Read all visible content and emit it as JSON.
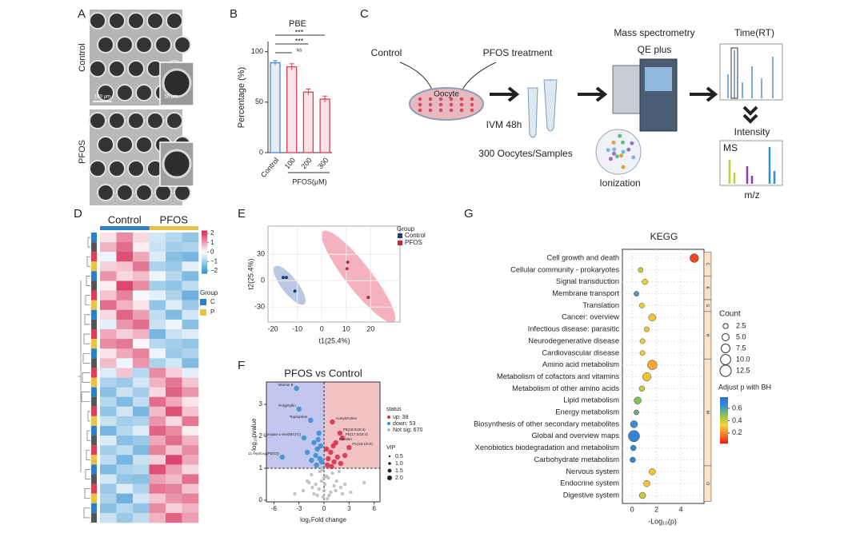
{
  "panels": {
    "letters": [
      "A",
      "B",
      "C",
      "D",
      "E",
      "F",
      "G"
    ]
  },
  "panel_a": {
    "rows": [
      "Control",
      "PFOS"
    ],
    "scale_bars": [
      "100 μm",
      "50 μm"
    ]
  },
  "diagram": {
    "control": "Control",
    "treatment": "PFOS treatment",
    "oocyte": "Oocyte",
    "ivm": "IVM 48h",
    "samples": "300 Oocytes/Samples",
    "ms1": "Mass spectrometry",
    "ms2": "QE plus",
    "ionization": "Ionization",
    "time": "Time(RT)",
    "intensity": "Intensity",
    "ms": "MS",
    "mz": "m/z"
  },
  "chart_data": [
    {
      "type": "bar",
      "title": "PBE",
      "y_label": "Percentage (%)",
      "x_label": "PFOS(μM)",
      "categories": [
        "Control",
        "100",
        "200",
        "300"
      ],
      "values": [
        89,
        85,
        60,
        53
      ],
      "errors": [
        2,
        3,
        3,
        3
      ],
      "colors": [
        "#4d86c8",
        "#d9405a",
        "#d9405a",
        "#d9405a"
      ],
      "ylim": [
        0,
        110
      ],
      "yticks": [
        0,
        50,
        100
      ],
      "annotations": [
        "NS",
        "***",
        "***"
      ]
    },
    {
      "type": "heatmap",
      "column_groups": [
        "Control",
        "PFOS"
      ],
      "group_colors": [
        "#2f7fc1",
        "#e8c34a"
      ],
      "zlim": [
        -2.3,
        2.3
      ],
      "zticks": [
        2,
        1,
        0,
        {
          "value": -1,
          "label": "−1"
        },
        {
          "value": -2,
          "label": "−2"
        }
      ],
      "legend": {
        "title": "Group",
        "items": [
          "C",
          "P"
        ]
      },
      "matrix": [
        [
          0.3,
          1.2,
          0.4,
          -0.5,
          -0.8,
          -1.2
        ],
        [
          0.8,
          1.5,
          0.2,
          -0.6,
          -1,
          -0.9
        ],
        [
          -0.2,
          1.8,
          0.9,
          -0.4,
          -1.3,
          -1.5
        ],
        [
          0.5,
          0.6,
          1.4,
          -0.9,
          -1.1,
          -0.3
        ],
        [
          1.1,
          0.4,
          0.7,
          -0.2,
          -0.8,
          -1.4
        ],
        [
          0.2,
          1.9,
          1.2,
          -1,
          -1.2,
          -0.7
        ],
        [
          0.6,
          1.3,
          -0.1,
          -0.3,
          -0.9,
          -1.6
        ],
        [
          1.5,
          0.8,
          0.3,
          -1.2,
          -0.4,
          -1.1
        ],
        [
          0.4,
          1.6,
          1.0,
          -0.7,
          -1.4,
          -0.5
        ],
        [
          -0.3,
          1.1,
          1.5,
          -0.6,
          -0.2,
          -1.3
        ],
        [
          0.9,
          0.5,
          0.8,
          -1.5,
          -0.6,
          -0.4
        ],
        [
          1.2,
          1.4,
          0.1,
          -0.8,
          -1.0,
          -1.2
        ],
        [
          0.3,
          0.9,
          1.3,
          -0.2,
          -1.1,
          -0.9
        ],
        [
          0.7,
          -0.2,
          1.1,
          -0.9,
          -0.5,
          -1.4
        ],
        [
          -0.4,
          0.6,
          -0.8,
          1.2,
          0.5,
          -0.3
        ],
        [
          -0.9,
          -1.1,
          -0.5,
          0.8,
          1.4,
          0.6
        ],
        [
          -1.3,
          -0.6,
          -1.0,
          0.4,
          1.6,
          1.1
        ],
        [
          -0.8,
          -1.4,
          -0.7,
          1.5,
          0.9,
          0.3
        ],
        [
          -1.2,
          -0.5,
          -1.5,
          0.7,
          1.8,
          0.6
        ],
        [
          -0.6,
          -1.0,
          -0.9,
          1.1,
          0.4,
          1.4
        ],
        [
          -1.5,
          -0.8,
          -0.4,
          1.6,
          1.2,
          0.2
        ],
        [
          -0.4,
          -1.3,
          -1.1,
          0.9,
          1.5,
          0.8
        ],
        [
          -1.0,
          -0.7,
          -1.4,
          1.3,
          0.6,
          1.2
        ],
        [
          -0.7,
          -1.5,
          -0.6,
          0.5,
          1.9,
          0.9
        ],
        [
          -1.4,
          -0.9,
          -0.8,
          1.8,
          1.0,
          0.4
        ],
        [
          -0.5,
          -1.2,
          -1.3,
          1.0,
          0.7,
          1.5
        ],
        [
          -1.1,
          -0.4,
          -0.9,
          1.4,
          1.3,
          0.6
        ],
        [
          -0.9,
          -1.6,
          -0.5,
          0.6,
          1.1,
          1.3
        ],
        [
          -1.3,
          -0.8,
          -1.2,
          1.2,
          0.5,
          0.8
        ],
        [
          -0.6,
          -1.1,
          -0.7,
          0.8,
          1.6,
          1.0
        ]
      ]
    },
    {
      "type": "scatter",
      "x_label": "t1(25.4%)",
      "y_label": "t2(25.4%)",
      "legend_title": "Group",
      "series": [
        {
          "name": "Control",
          "color": "#1f3d7a",
          "x": [
            -15.8,
            -14.5,
            -11
          ],
          "values": [
            3.6,
            3.6,
            -11.8
          ]
        },
        {
          "name": "PFOS",
          "color": "#c8233f",
          "x": [
            10.6,
            10.3,
            19
          ],
          "values": [
            21,
            13.6,
            -19
          ]
        }
      ],
      "xlim": [
        -22,
        32
      ],
      "ylim": [
        -47,
        62
      ],
      "xticks": [
        -20,
        -10,
        0,
        10,
        20
      ],
      "yticks": [
        -30,
        0,
        30
      ]
    },
    {
      "type": "volcano",
      "title": "PFOS vs Control",
      "x_label": "log₂Fold change",
      "y_label": "-log₁₀pvalue",
      "legend_title": "status",
      "hline": 1,
      "vline": 0,
      "series": [
        {
          "name": "up: 38",
          "color": "#d6314e",
          "x": [
            1.0,
            1.9,
            2.2,
            1.4,
            3.0,
            0.5,
            0.8,
            1.2,
            0.4,
            2.5,
            1.6,
            0.3,
            0.9,
            2.0,
            1.1
          ],
          "values": [
            2.45,
            2.1,
            1.95,
            1.8,
            1.65,
            1.3,
            1.5,
            1.2,
            1.1,
            1.4,
            1.35,
            1.6,
            1.05,
            1.15,
            1.7
          ]
        },
        {
          "name": "down: 53",
          "color": "#3b8fd0",
          "x": [
            -3.3,
            -3.0,
            -1.6,
            -2.4,
            -5.0,
            -1.2,
            -0.8,
            -0.5,
            -1.0,
            -0.3,
            -0.6,
            -1.5,
            -0.9,
            -0.4,
            -2.0,
            -0.7
          ],
          "values": [
            3.5,
            2.85,
            2.5,
            1.95,
            1.35,
            1.8,
            1.6,
            1.3,
            1.4,
            1.2,
            2.1,
            1.25,
            1.1,
            1.7,
            1.5,
            1.9
          ]
        },
        {
          "name": "Not sig: 670",
          "color": "#bdbdbd",
          "x": [
            -2,
            -1.5,
            -1,
            -0.5,
            0,
            0.5,
            1,
            1.5,
            2,
            2.5,
            -2.5,
            -1.2,
            -0.3,
            0.3,
            0.8,
            1.8,
            -0.8,
            0.1,
            -0.1,
            1.2,
            -1.8,
            2.2,
            -0.6,
            0.6,
            1.4,
            -1.4,
            0.0,
            -3.5,
            3.2,
            4.8,
            -0.2,
            0.4
          ],
          "values": [
            0.6,
            0.8,
            0.5,
            0.9,
            0.3,
            0.7,
            0.85,
            0.6,
            0.4,
            0.5,
            0.3,
            0.2,
            0.6,
            0.75,
            0.25,
            0.9,
            0.15,
            0.5,
            0.1,
            0.45,
            0.55,
            0.2,
            0.35,
            0.15,
            0.3,
            0.4,
            0.7,
            0.2,
            0.25,
            0.55,
            0.95,
            0.05
          ]
        }
      ],
      "point_labels": {
        "up": [
          "Acetylcholine",
          "PE(18:0/20:4)",
          "PE(17:0/22:4)",
          "Ebselen",
          "PC(18:1/0:0)"
        ],
        "down": [
          "Vitamin B",
          "Polyphyllin",
          "Tryptophan",
          "2-propan-1-ene(MG(T))",
          "11-Hydroxy(PD(O))"
        ]
      },
      "size_legend": {
        "title": "VIP",
        "ticks": [
          0.5,
          {
            "value": 1,
            "label": "1.0"
          },
          1.5,
          {
            "value": 2,
            "label": "2.0"
          }
        ]
      },
      "xlim": [
        -6.9,
        6.7
      ],
      "ylim": [
        -0.05,
        3.7
      ],
      "xticks": [
        -6,
        -3,
        0,
        3,
        6
      ],
      "yticks": [
        0,
        1,
        2,
        3
      ]
    },
    {
      "type": "dot",
      "title": "KEGG",
      "x_label": "-Log₁₀(p)",
      "categories": [
        "Cell growth and death",
        "Cellular community - prokaryotes",
        "Signal transduction",
        "Membrane transport",
        "Translation",
        "Cancer: overview",
        "Infectious disease: parasitic",
        "Neurodegenerative disease",
        "Cardiovascular disease",
        "Amino acid metabolism",
        "Metabolism of cofactors and vitamins",
        "Metabolism of other amino acids",
        "Lipid metabolism",
        "Energy metabolism",
        "Biosynthesis of other secondary metabolites",
        "Global and overview maps",
        "Xenobiotics biodegradation and metabolism",
        "Carbohydrate metabolism",
        "Nervous system",
        "Endocrine system",
        "Digestive system"
      ],
      "values": [
        5.1,
        0.7,
        1.05,
        0.35,
        0.8,
        1.65,
        1.2,
        0.85,
        0.85,
        1.65,
        1.2,
        0.8,
        0.45,
        0.35,
        0.15,
        0.15,
        0.1,
        0.05,
        1.65,
        1.2,
        0.85
      ],
      "counts": [
        7.5,
        2.5,
        3,
        2.5,
        2.5,
        5,
        2.5,
        2.5,
        2.5,
        9,
        7,
        3,
        5,
        2.5,
        5,
        12.5,
        3,
        3,
        4,
        4,
        4
      ],
      "padj": [
        0.1,
        0.4,
        0.35,
        0.6,
        0.35,
        0.3,
        0.3,
        0.35,
        0.35,
        0.25,
        0.3,
        0.4,
        0.5,
        0.55,
        0.65,
        0.68,
        0.68,
        0.68,
        0.3,
        0.3,
        0.4
      ],
      "groups": [
        "C",
        "E",
        "G",
        "H",
        "M",
        "O"
      ],
      "size_legend": {
        "title": "Count",
        "ticks": [
          2.5,
          {
            "value": 5,
            "label": "5.0"
          },
          7.5,
          {
            "value": 10,
            "label": "10.0"
          },
          12.5
        ]
      },
      "colorbar": {
        "title": "Adjust p with BH",
        "range": [
          0.03,
          0.78
        ],
        "ticks": [
          0.6,
          0.4,
          0.2
        ],
        "colors": [
          "#e31a1c",
          "#f4812a",
          "#f3d23a",
          "#8fc641",
          "#3a8fd6",
          "#2a6fcf"
        ]
      },
      "xlim": [
        -0.8,
        5.9
      ],
      "xticks": [
        0,
        2,
        4
      ]
    }
  ]
}
